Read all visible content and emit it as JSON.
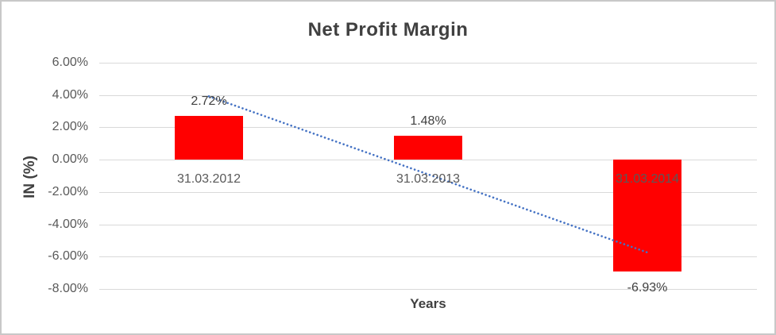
{
  "window": {
    "background": "#FFFFFF",
    "border_color": "#C8C8C8"
  },
  "chart_data": {
    "type": "bar",
    "title": "Net Profit Margin",
    "xlabel": "Years",
    "ylabel": "IN (%)",
    "categories": [
      "31.03.2012",
      "31.03.2013",
      "31.03.2014"
    ],
    "series": [
      {
        "name": "Net Profit Margin",
        "values": [
          2.72,
          1.48,
          -6.93
        ]
      }
    ],
    "data_labels": [
      "2.72%",
      "1.48%",
      "-6.93%"
    ],
    "ylim": [
      -8,
      6
    ],
    "ytick_step": 2,
    "ytick_labels": [
      "6.00%",
      "4.00%",
      "2.00%",
      "0.00%",
      "-2.00%",
      "-4.00%",
      "-6.00%",
      "-8.00%"
    ],
    "grid": true,
    "legend": "none",
    "bar_color": "#FF0000",
    "gridline_color": "#D9D9D9",
    "axis_text_color": "#595959",
    "label_text_color": "#404040",
    "trendline": {
      "type": "linear",
      "style": "dotted",
      "color": "#4472C4",
      "start_value": 3.92,
      "end_value": -5.74
    }
  }
}
